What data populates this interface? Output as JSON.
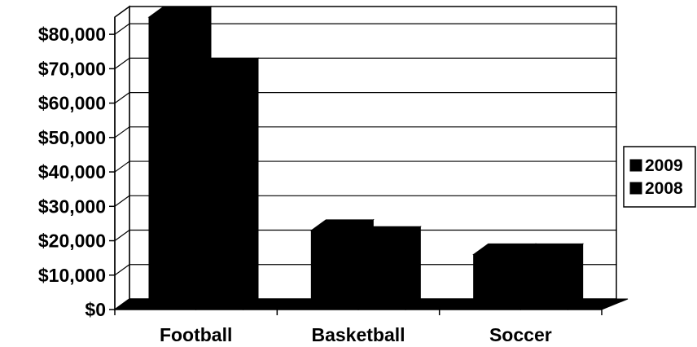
{
  "chart_data": {
    "type": "bar",
    "title": "",
    "xlabel": "",
    "ylabel": "",
    "categories": [
      "Football",
      "Basketball",
      "Soccer"
    ],
    "series": [
      {
        "name": "2009",
        "values": [
          85000,
          23000,
          16000
        ],
        "color": "#000000"
      },
      {
        "name": "2008",
        "values": [
          70000,
          21000,
          16000
        ],
        "color": "#000000"
      }
    ],
    "ylim": [
      0,
      85000
    ],
    "yticks": [
      0,
      10000,
      20000,
      30000,
      40000,
      50000,
      60000,
      70000,
      80000
    ],
    "ytick_labels": [
      "$0",
      "$10,000",
      "$20,000",
      "$30,000",
      "$40,000",
      "$50,000",
      "$60,000",
      "$70,000",
      "$80,000"
    ],
    "grid": true,
    "legend_position": "right",
    "style": "3d-clustered-column"
  }
}
